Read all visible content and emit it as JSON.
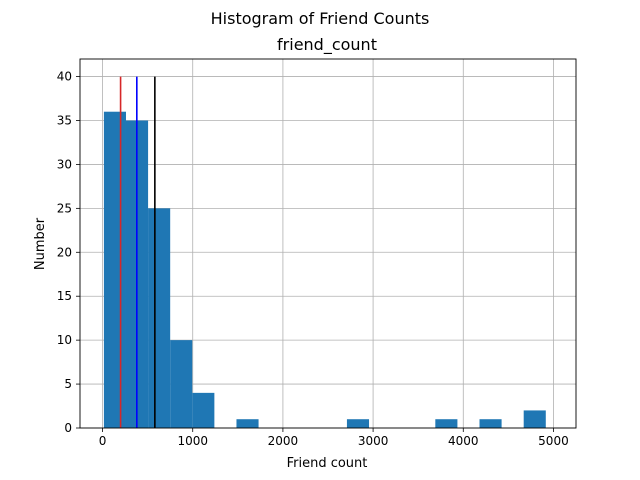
{
  "figure": {
    "suptitle": "Histogram of Friend Counts"
  },
  "chart_data": {
    "type": "bar",
    "title": "friend_count",
    "xlabel": "Friend count",
    "ylabel": "Number",
    "xlim": [
      -250,
      5250
    ],
    "ylim": [
      0,
      42
    ],
    "x_ticks": [
      0,
      1000,
      2000,
      3000,
      4000,
      5000
    ],
    "y_ticks": [
      0,
      5,
      10,
      15,
      20,
      25,
      30,
      35,
      40
    ],
    "grid": true,
    "bar_color": "#1f77b4",
    "bins": [
      {
        "x0": 15,
        "x1": 260,
        "count": 36
      },
      {
        "x0": 260,
        "x1": 505,
        "count": 35
      },
      {
        "x0": 505,
        "x1": 750,
        "count": 25
      },
      {
        "x0": 750,
        "x1": 995,
        "count": 10
      },
      {
        "x0": 995,
        "x1": 1240,
        "count": 4
      },
      {
        "x0": 1240,
        "x1": 1485,
        "count": 0
      },
      {
        "x0": 1485,
        "x1": 1730,
        "count": 1
      },
      {
        "x0": 1730,
        "x1": 1975,
        "count": 0
      },
      {
        "x0": 1975,
        "x1": 2220,
        "count": 0
      },
      {
        "x0": 2220,
        "x1": 2465,
        "count": 0
      },
      {
        "x0": 2465,
        "x1": 2710,
        "count": 0
      },
      {
        "x0": 2710,
        "x1": 2955,
        "count": 1
      },
      {
        "x0": 2955,
        "x1": 3200,
        "count": 0
      },
      {
        "x0": 3200,
        "x1": 3445,
        "count": 0
      },
      {
        "x0": 3445,
        "x1": 3690,
        "count": 0
      },
      {
        "x0": 3690,
        "x1": 3935,
        "count": 1
      },
      {
        "x0": 3935,
        "x1": 4180,
        "count": 0
      },
      {
        "x0": 4180,
        "x1": 4425,
        "count": 1
      },
      {
        "x0": 4425,
        "x1": 4670,
        "count": 0
      },
      {
        "x0": 4670,
        "x1": 4915,
        "count": 2
      }
    ],
    "vlines": [
      {
        "x": 200,
        "y_top": 40,
        "color": "#d62728"
      },
      {
        "x": 380,
        "y_top": 40,
        "color": "#0000ff"
      },
      {
        "x": 580,
        "y_top": 40,
        "color": "#000000"
      }
    ]
  }
}
